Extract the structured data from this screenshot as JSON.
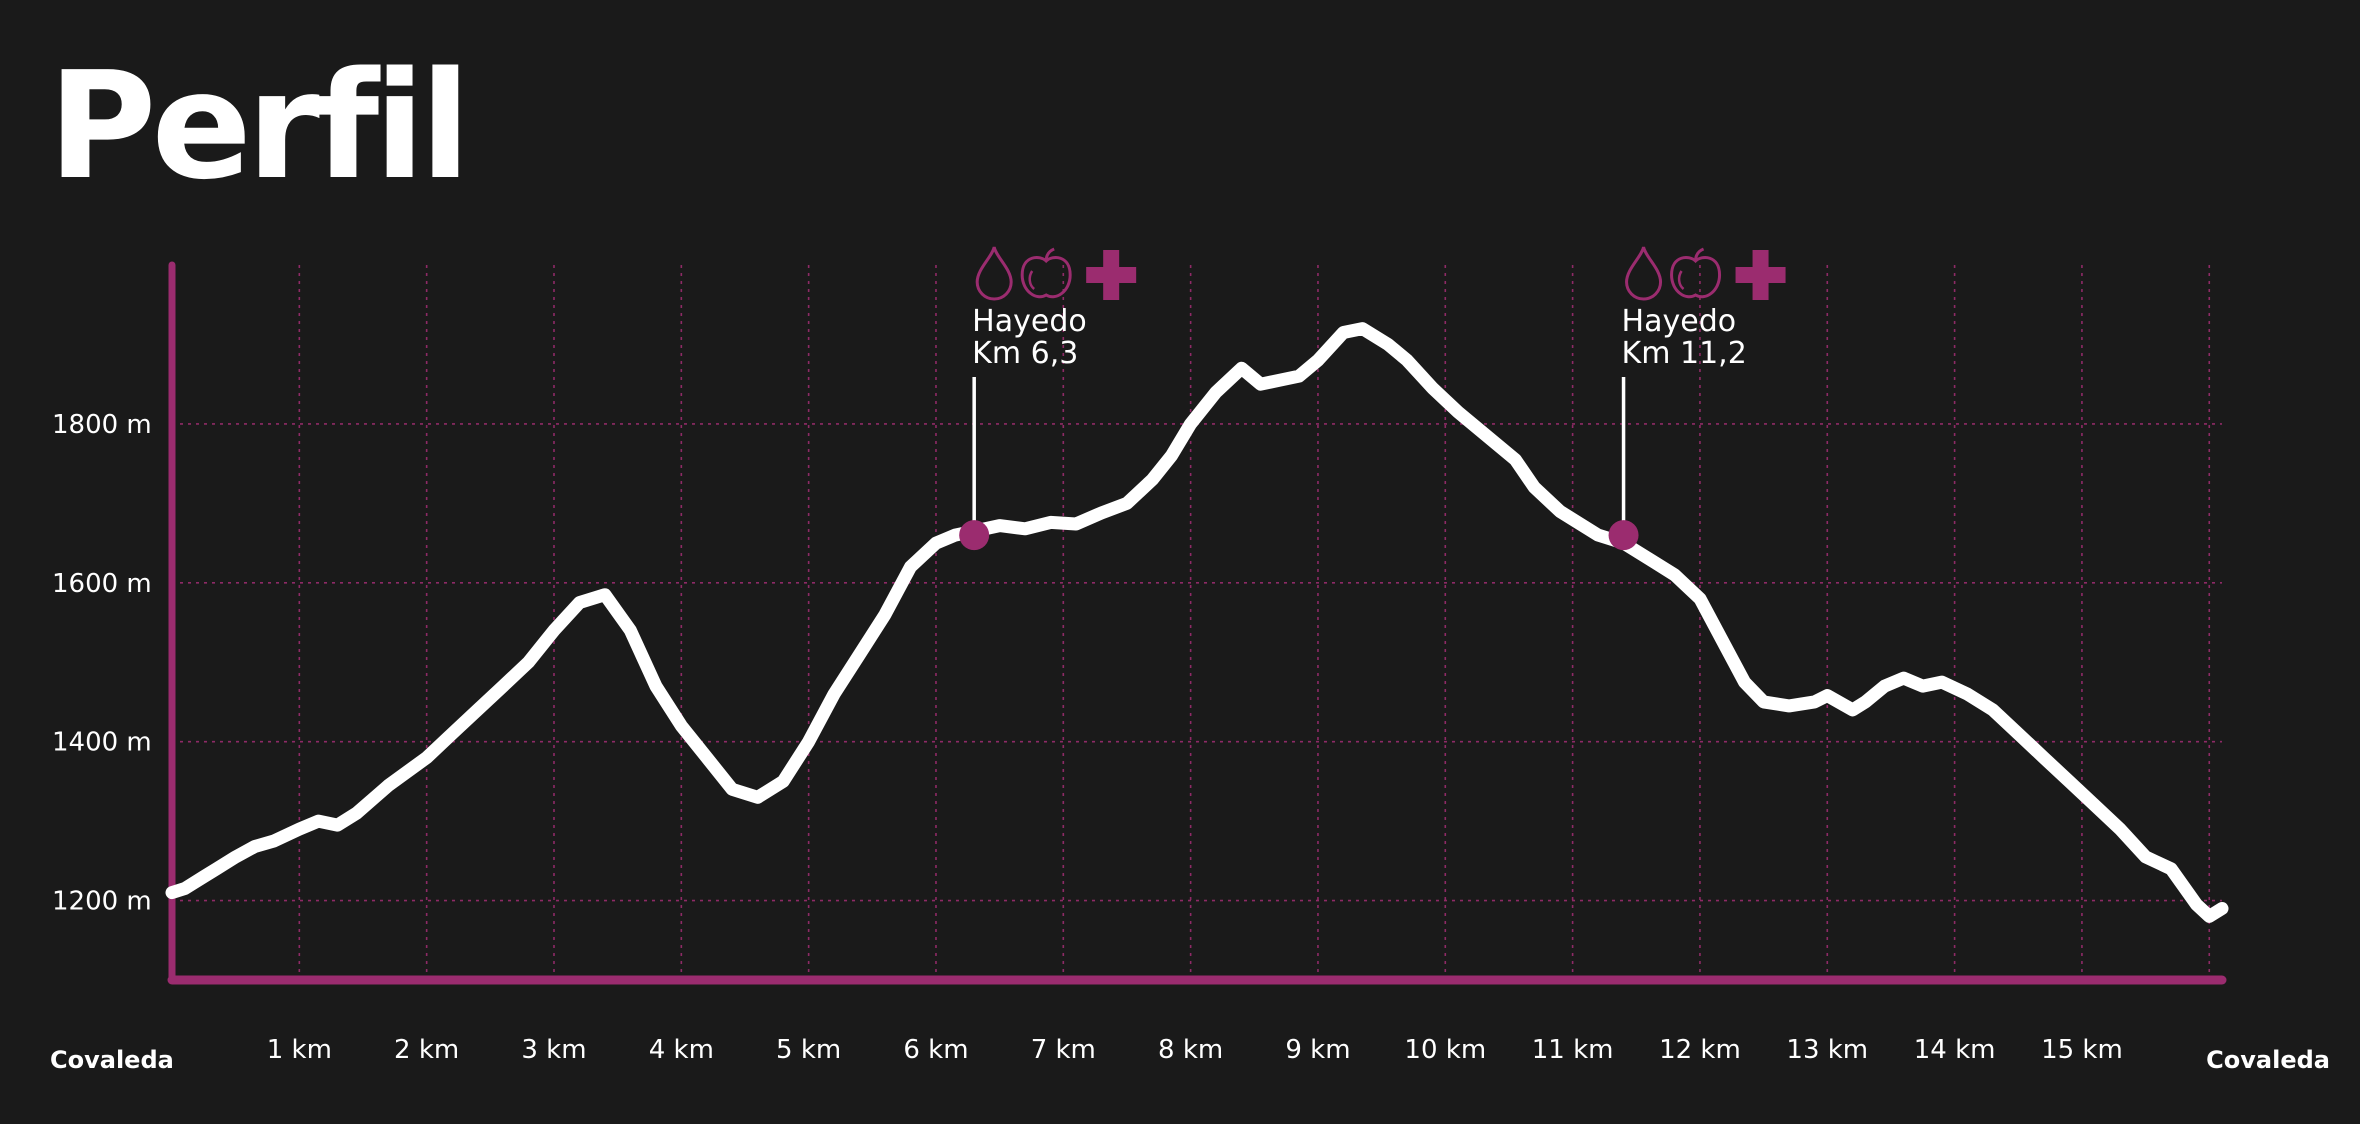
{
  "title": "Perfil",
  "colors": {
    "background": "#1a1a1a",
    "line": "#ffffff",
    "accent": "#9b2c6f",
    "grid": "#9b2c6f"
  },
  "chart_data": {
    "type": "line",
    "title": "Perfil",
    "xlabel": "",
    "ylabel": "",
    "xlim": [
      0,
      16.1
    ],
    "ylim": [
      1100,
      2000
    ],
    "grid": true,
    "x_ticks": [
      {
        "value": 1,
        "label": "1 km"
      },
      {
        "value": 2,
        "label": "2 km"
      },
      {
        "value": 3,
        "label": "3 km"
      },
      {
        "value": 4,
        "label": "4 km"
      },
      {
        "value": 5,
        "label": "5 km"
      },
      {
        "value": 6,
        "label": "6 km"
      },
      {
        "value": 7,
        "label": "7 km"
      },
      {
        "value": 8,
        "label": "8 km"
      },
      {
        "value": 9,
        "label": "9 km"
      },
      {
        "value": 10,
        "label": "10 km"
      },
      {
        "value": 11,
        "label": "11 km"
      },
      {
        "value": 12,
        "label": "12 km"
      },
      {
        "value": 13,
        "label": "13 km"
      },
      {
        "value": 14,
        "label": "14 km"
      },
      {
        "value": 15,
        "label": "15 km"
      },
      {
        "value": 16,
        "label": ""
      }
    ],
    "y_ticks": [
      {
        "value": 1200,
        "label": "1200 m"
      },
      {
        "value": 1400,
        "label": "1400 m"
      },
      {
        "value": 1600,
        "label": "1600 m"
      },
      {
        "value": 1800,
        "label": "1800 m"
      }
    ],
    "start_label": "Covaleda",
    "end_label": "Covaleda",
    "series": [
      {
        "x": [
          0,
          0.1,
          0.25,
          0.35,
          0.5,
          0.65,
          0.8,
          1.0,
          1.15,
          1.3,
          1.45,
          1.7,
          2.0,
          2.2,
          2.4,
          2.6,
          2.8,
          3.0,
          3.2,
          3.4,
          3.6,
          3.8,
          4.0,
          4.2,
          4.4,
          4.6,
          4.8,
          5.0,
          5.2,
          5.4,
          5.6,
          5.8,
          6.0,
          6.15,
          6.3,
          6.5,
          6.7,
          6.9,
          7.1,
          7.3,
          7.5,
          7.7,
          7.85,
          8.0,
          8.2,
          8.4,
          8.55,
          8.7,
          8.85,
          9.0,
          9.2,
          9.35,
          9.55,
          9.7,
          9.9,
          10.1,
          10.25,
          10.4,
          10.55,
          10.7,
          10.9,
          11.2,
          11.4,
          11.6,
          11.8,
          12.0,
          12.2,
          12.35,
          12.5,
          12.7,
          12.9,
          13.0,
          13.2,
          13.3,
          13.45,
          13.6,
          13.75,
          13.9,
          14.1,
          14.3,
          14.5,
          14.7,
          14.9,
          15.1,
          15.3,
          15.5,
          15.7,
          15.9,
          16.0,
          16.1
        ],
        "y": [
          1210,
          1215,
          1230,
          1240,
          1255,
          1268,
          1275,
          1290,
          1300,
          1295,
          1310,
          1345,
          1380,
          1410,
          1440,
          1470,
          1500,
          1540,
          1575,
          1585,
          1540,
          1470,
          1420,
          1380,
          1340,
          1330,
          1350,
          1400,
          1460,
          1510,
          1560,
          1620,
          1650,
          1660,
          1665,
          1672,
          1668,
          1676,
          1674,
          1688,
          1700,
          1730,
          1760,
          1800,
          1840,
          1870,
          1850,
          1855,
          1860,
          1880,
          1915,
          1920,
          1900,
          1880,
          1845,
          1815,
          1795,
          1775,
          1755,
          1720,
          1690,
          1660,
          1650,
          1630,
          1610,
          1580,
          1520,
          1475,
          1450,
          1445,
          1450,
          1458,
          1440,
          1450,
          1470,
          1480,
          1470,
          1475,
          1460,
          1440,
          1410,
          1380,
          1350,
          1320,
          1290,
          1255,
          1240,
          1195,
          1180,
          1190
        ]
      }
    ],
    "annotations": [
      {
        "x": 6.3,
        "y": 1660,
        "name": "Hayedo",
        "km": "Km 6,3",
        "icons": [
          "water-drop-icon",
          "apple-icon",
          "first-aid-cross-icon"
        ]
      },
      {
        "x": 11.4,
        "y": 1660,
        "name": "Hayedo",
        "km": "Km 11,2",
        "icons": [
          "water-drop-icon",
          "apple-icon",
          "first-aid-cross-icon"
        ]
      }
    ]
  }
}
